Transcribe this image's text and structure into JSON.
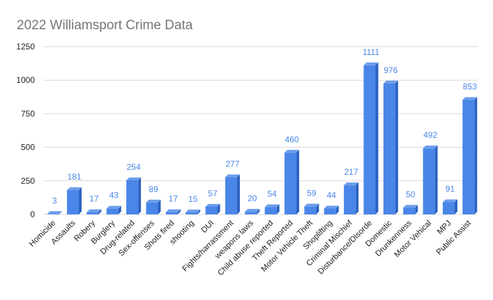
{
  "chart_data": {
    "type": "bar",
    "title": "2022 Williamsport Crime Data",
    "xlabel": "",
    "ylabel": "",
    "ylim": [
      0,
      1250
    ],
    "yticks": [
      0,
      250,
      500,
      750,
      1000,
      1250
    ],
    "grid": true,
    "legend": "none",
    "bar_color": "#4a86e8",
    "categories": [
      "Homicide",
      "Assaults",
      "Robery",
      "Burglery",
      "Drug-related",
      "Sex-offenses",
      "Shots fired",
      "shooting",
      "DUI",
      "Fights/harrassment",
      "weapons laws",
      "Child abuse reported",
      "Theft Reported",
      "Motor Vehicle Theft",
      "Shoplifting",
      "Criminal Mischief",
      "Disturbance/Disorde",
      "Domestic",
      "Drunkenness",
      "Motor Vehical",
      "MPJ",
      "Public Assist"
    ],
    "values": [
      3,
      181,
      17,
      43,
      254,
      89,
      17,
      15,
      57,
      277,
      20,
      54,
      460,
      59,
      44,
      217,
      1111,
      976,
      50,
      492,
      91,
      853
    ]
  }
}
